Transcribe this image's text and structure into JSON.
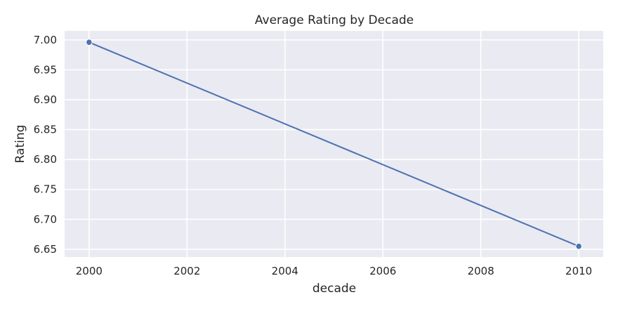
{
  "chart_data": {
    "type": "line",
    "title": "Average Rating by Decade",
    "xlabel": "decade",
    "ylabel": "Rating",
    "x": [
      2000,
      2010
    ],
    "series": [
      {
        "values": [
          6.996,
          6.655
        ],
        "color": "#4c72b0",
        "marker": "circle"
      }
    ],
    "xlim": [
      1999.5,
      2010.5
    ],
    "ylim": [
      6.637,
      7.015
    ],
    "xticks": [
      2000,
      2002,
      2004,
      2006,
      2008,
      2010
    ],
    "yticks": [
      6.65,
      6.7,
      6.75,
      6.8,
      6.85,
      6.9,
      6.95,
      7.0
    ],
    "ytick_format": "0.00",
    "grid": true,
    "background": "#eaeaf2"
  }
}
